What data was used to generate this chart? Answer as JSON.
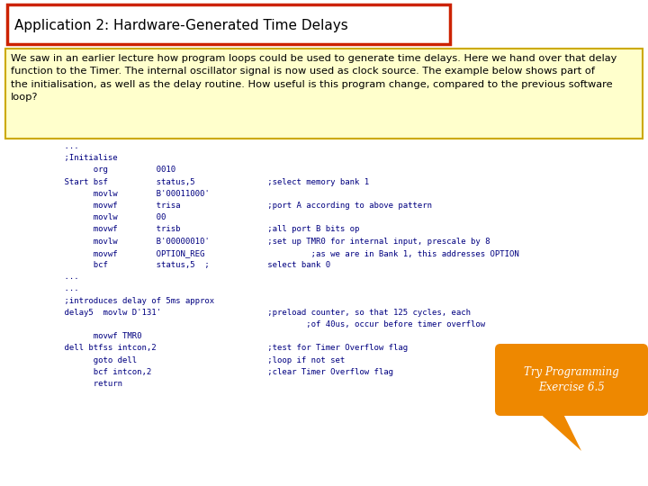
{
  "title": "Application 2: Hardware-Generated Time Delays",
  "title_box_color": "#cc2200",
  "title_fill_color": "#ffffff",
  "title_fontsize": 11,
  "bg_color": "#ffffff",
  "desc_text": "We saw in an earlier lecture how program loops could be used to generate time delays. Here we hand over that delay\nfunction to the Timer. The internal oscillator signal is now used as clock source. The example below shows part of\nthe initialisation, as well as the delay routine. How useful is this program change, compared to the previous software\nloop?",
  "desc_box_color": "#ccaa00",
  "desc_fill_color": "#ffffcc",
  "desc_fontsize": 8.2,
  "code_lines": [
    "    ...",
    "    ;Initialise",
    "          org          0010",
    "    Start bsf          status,5               ;select memory bank 1",
    "          movlw        B'00011000'",
    "          movwf        trisa                  ;port A according to above pattern",
    "          movlw        00",
    "          movwf        trisb                  ;all port B bits op",
    "          movlw        B'00000010'            ;set up TMR0 for internal input, prescale by 8",
    "          movwf        OPTION_REG                      ;as we are in Bank 1, this addresses OPTION",
    "          bcf          status,5  ;            select bank 0",
    "    ...",
    "    ...",
    "    ;introduces delay of 5ms approx",
    "    delay5  movlw D'131'                      ;preload counter, so that 125 cycles, each",
    "                                                      ;of 40us, occur before timer overflow",
    "          movwf TMR0",
    "    dell btfss intcon,2                       ;test for Timer Overflow flag",
    "          goto dell                           ;loop if not set",
    "          bcf intcon,2                        ;clear Timer Overflow flag",
    "          return"
  ],
  "code_fontsize": 6.5,
  "code_color": "#000080",
  "bubble_text": "Try Programming\nExercise 6.5",
  "bubble_color": "#ee8800",
  "bubble_text_color": "#ffffff",
  "bubble_fontsize": 8.5
}
